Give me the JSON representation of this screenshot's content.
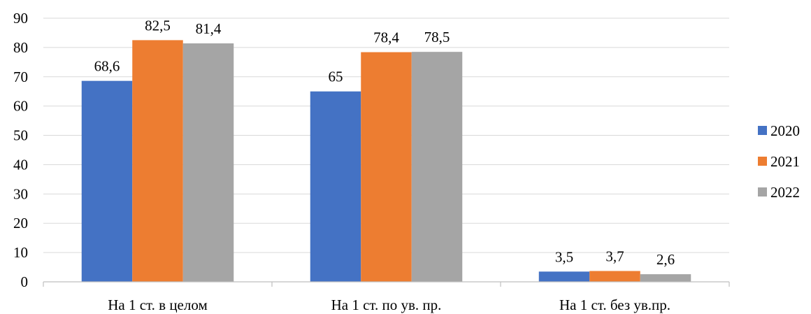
{
  "chart_data": {
    "type": "bar",
    "categories": [
      "На 1 ст. в целом",
      "На 1 ст. по ув. пр.",
      "На 1 ст. без ув.пр."
    ],
    "series": [
      {
        "name": "2020",
        "values": [
          68.6,
          65,
          3.5
        ],
        "labels": [
          "68,6",
          "65",
          "3,5"
        ],
        "color": "#4472C4"
      },
      {
        "name": "2021",
        "values": [
          82.5,
          78.4,
          3.7
        ],
        "labels": [
          "82,5",
          "78,4",
          "3,7"
        ],
        "color": "#ED7D31"
      },
      {
        "name": "2022",
        "values": [
          81.4,
          78.5,
          2.6
        ],
        "labels": [
          "81,4",
          "78,5",
          "2,6"
        ],
        "color": "#A5A5A5"
      }
    ],
    "ylim": [
      0,
      90
    ],
    "yticks": [
      0,
      10,
      20,
      30,
      40,
      50,
      60,
      70,
      80,
      90
    ],
    "grid": true,
    "legend": "right",
    "gridline_color": "#D9D9D9",
    "axis_color": "#BFBFBF"
  }
}
